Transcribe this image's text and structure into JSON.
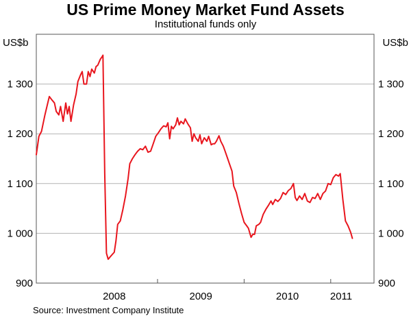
{
  "chart_data": {
    "type": "line",
    "title": "US Prime Money Market Fund Assets",
    "subtitle": "Institutional funds only",
    "y_unit_left": "US$b",
    "y_unit_right": "US$b",
    "ylim": [
      900,
      1400
    ],
    "yticks": [
      900,
      1000,
      1100,
      1200,
      1300
    ],
    "ytick_labels": [
      "900",
      "1 000",
      "1 100",
      "1 200",
      "1 300"
    ],
    "xlim": [
      2007.6,
      2011.5
    ],
    "x_year_labels": [
      {
        "label": "2008",
        "center": 2008.5
      },
      {
        "label": "2009",
        "center": 2009.5
      },
      {
        "label": "2010",
        "center": 2010.5
      },
      {
        "label": "2011",
        "center": 2011.5
      }
    ],
    "x_year_boundaries": [
      2009.0,
      2010.0,
      2011.0
    ],
    "grid": true,
    "line_color": "#e8151d",
    "source": "Source: Investment Company Institute",
    "series": [
      {
        "color": "#e8151d",
        "points": [
          [
            2007.6,
            1158
          ],
          [
            2007.63,
            1195
          ],
          [
            2007.66,
            1205
          ],
          [
            2007.7,
            1238
          ],
          [
            2007.73,
            1260
          ],
          [
            2007.75,
            1275
          ],
          [
            2007.78,
            1268
          ],
          [
            2007.81,
            1262
          ],
          [
            2007.83,
            1245
          ],
          [
            2007.86,
            1238
          ],
          [
            2007.88,
            1255
          ],
          [
            2007.91,
            1225
          ],
          [
            2007.94,
            1262
          ],
          [
            2007.96,
            1240
          ],
          [
            2007.98,
            1255
          ],
          [
            2008.0,
            1225
          ],
          [
            2008.03,
            1258
          ],
          [
            2008.06,
            1280
          ],
          [
            2008.08,
            1305
          ],
          [
            2008.11,
            1318
          ],
          [
            2008.13,
            1325
          ],
          [
            2008.15,
            1300
          ],
          [
            2008.18,
            1300
          ],
          [
            2008.2,
            1325
          ],
          [
            2008.22,
            1315
          ],
          [
            2008.24,
            1330
          ],
          [
            2008.27,
            1322
          ],
          [
            2008.29,
            1335
          ],
          [
            2008.31,
            1338
          ],
          [
            2008.34,
            1350
          ],
          [
            2008.36,
            1355
          ],
          [
            2008.37,
            1358
          ],
          [
            2008.39,
            1120
          ],
          [
            2008.41,
            960
          ],
          [
            2008.43,
            948
          ],
          [
            2008.45,
            952
          ],
          [
            2008.48,
            958
          ],
          [
            2008.5,
            962
          ],
          [
            2008.52,
            985
          ],
          [
            2008.54,
            1018
          ],
          [
            2008.57,
            1025
          ],
          [
            2008.6,
            1048
          ],
          [
            2008.63,
            1075
          ],
          [
            2008.66,
            1110
          ],
          [
            2008.68,
            1140
          ],
          [
            2008.71,
            1150
          ],
          [
            2008.74,
            1158
          ],
          [
            2008.77,
            1165
          ],
          [
            2008.8,
            1170
          ],
          [
            2008.83,
            1168
          ],
          [
            2008.86,
            1175
          ],
          [
            2008.89,
            1163
          ],
          [
            2008.92,
            1165
          ],
          [
            2008.95,
            1180
          ],
          [
            2008.98,
            1195
          ],
          [
            2009.01,
            1202
          ],
          [
            2009.04,
            1210
          ],
          [
            2009.07,
            1216
          ],
          [
            2009.1,
            1214
          ],
          [
            2009.12,
            1222
          ],
          [
            2009.14,
            1190
          ],
          [
            2009.16,
            1215
          ],
          [
            2009.18,
            1210
          ],
          [
            2009.21,
            1218
          ],
          [
            2009.23,
            1232
          ],
          [
            2009.25,
            1218
          ],
          [
            2009.27,
            1225
          ],
          [
            2009.3,
            1220
          ],
          [
            2009.32,
            1230
          ],
          [
            2009.35,
            1220
          ],
          [
            2009.38,
            1212
          ],
          [
            2009.4,
            1185
          ],
          [
            2009.42,
            1200
          ],
          [
            2009.44,
            1192
          ],
          [
            2009.47,
            1185
          ],
          [
            2009.49,
            1198
          ],
          [
            2009.51,
            1180
          ],
          [
            2009.54,
            1192
          ],
          [
            2009.57,
            1185
          ],
          [
            2009.59,
            1195
          ],
          [
            2009.62,
            1178
          ],
          [
            2009.64,
            1180
          ],
          [
            2009.66,
            1180
          ],
          [
            2009.68,
            1185
          ],
          [
            2009.71,
            1196
          ],
          [
            2009.73,
            1185
          ],
          [
            2009.76,
            1175
          ],
          [
            2009.78,
            1165
          ],
          [
            2009.81,
            1150
          ],
          [
            2009.83,
            1140
          ],
          [
            2009.86,
            1125
          ],
          [
            2009.88,
            1095
          ],
          [
            2009.91,
            1082
          ],
          [
            2009.94,
            1060
          ],
          [
            2009.97,
            1040
          ],
          [
            2010.0,
            1022
          ],
          [
            2010.03,
            1015
          ],
          [
            2010.05,
            1010
          ],
          [
            2010.08,
            992
          ],
          [
            2010.1,
            998
          ],
          [
            2010.12,
            998
          ],
          [
            2010.14,
            1015
          ],
          [
            2010.17,
            1018
          ],
          [
            2010.19,
            1022
          ],
          [
            2010.22,
            1038
          ],
          [
            2010.25,
            1048
          ],
          [
            2010.28,
            1056
          ],
          [
            2010.31,
            1065
          ],
          [
            2010.33,
            1058
          ],
          [
            2010.36,
            1068
          ],
          [
            2010.39,
            1064
          ],
          [
            2010.42,
            1070
          ],
          [
            2010.45,
            1082
          ],
          [
            2010.48,
            1078
          ],
          [
            2010.51,
            1086
          ],
          [
            2010.54,
            1090
          ],
          [
            2010.57,
            1100
          ],
          [
            2010.59,
            1072
          ],
          [
            2010.61,
            1066
          ],
          [
            2010.64,
            1075
          ],
          [
            2010.67,
            1068
          ],
          [
            2010.7,
            1080
          ],
          [
            2010.73,
            1065
          ],
          [
            2010.76,
            1062
          ],
          [
            2010.79,
            1072
          ],
          [
            2010.82,
            1070
          ],
          [
            2010.85,
            1080
          ],
          [
            2010.88,
            1068
          ],
          [
            2010.91,
            1080
          ],
          [
            2010.94,
            1085
          ],
          [
            2010.97,
            1100
          ],
          [
            2011.0,
            1098
          ],
          [
            2011.03,
            1112
          ],
          [
            2011.06,
            1118
          ],
          [
            2011.09,
            1115
          ],
          [
            2011.11,
            1120
          ],
          [
            2011.14,
            1068
          ],
          [
            2011.17,
            1025
          ],
          [
            2011.2,
            1015
          ],
          [
            2011.23,
            1002
          ],
          [
            2011.25,
            990
          ]
        ]
      }
    ]
  }
}
